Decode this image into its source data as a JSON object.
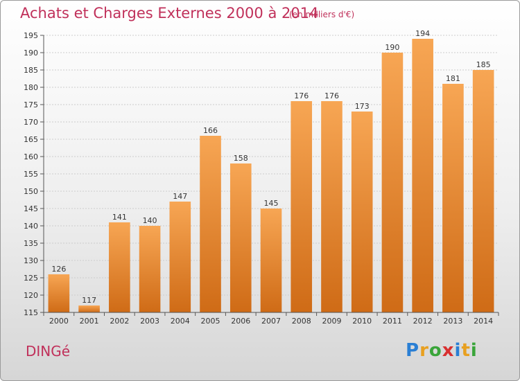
{
  "header": {
    "title": "Achats et Charges Externes 2000 à 2014",
    "subtitle": "(en milliers d'€)"
  },
  "footer": {
    "town": "DINGé",
    "logo_letters": [
      "P",
      "r",
      "o",
      "x",
      "i",
      "t",
      "i"
    ],
    "logo_colors": [
      "#2a7fd4",
      "#e8a020",
      "#3aa53a",
      "#d83030",
      "#2a7fd4",
      "#e8a020",
      "#3aa53a"
    ]
  },
  "colors": {
    "bar_top": "#f7a654",
    "bar_bottom": "#cf6b16",
    "grid": "#cccccc",
    "axis": "#555555",
    "accent": "#c0305a"
  },
  "chart_data": {
    "type": "bar",
    "title": "Achats et Charges Externes 2000 à 2014",
    "subtitle": "(en milliers d'€)",
    "categories": [
      "2000",
      "2001",
      "2002",
      "2003",
      "2004",
      "2005",
      "2006",
      "2007",
      "2008",
      "2009",
      "2010",
      "2011",
      "2012",
      "2013",
      "2014"
    ],
    "values": [
      126,
      117,
      141,
      140,
      147,
      166,
      158,
      145,
      176,
      176,
      173,
      190,
      194,
      181,
      185
    ],
    "ylim": [
      115,
      195
    ],
    "yticks": [
      115,
      120,
      125,
      130,
      135,
      140,
      145,
      150,
      155,
      160,
      165,
      170,
      175,
      180,
      185,
      190,
      195
    ],
    "grid": true,
    "data_labels": true
  }
}
